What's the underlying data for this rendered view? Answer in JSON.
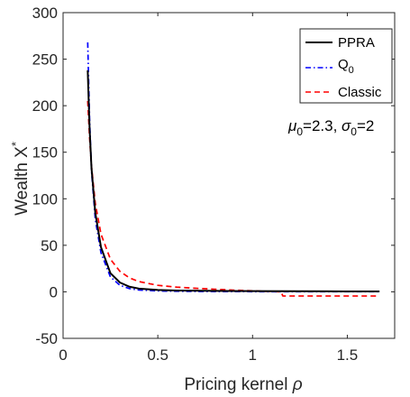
{
  "chart_data": {
    "type": "line",
    "xlabel": {
      "text": "Pricing kernel ",
      "symbol": "ρ"
    },
    "ylabel": {
      "text": "Wealth X",
      "superscript": "*"
    },
    "xlim": [
      0,
      1.75
    ],
    "ylim": [
      -50,
      300
    ],
    "xticks": [
      0,
      0.5,
      1,
      1.5
    ],
    "xtick_labels": [
      "0",
      "0.5",
      "1",
      "1.5"
    ],
    "yticks": [
      -50,
      0,
      50,
      100,
      150,
      200,
      250,
      300
    ],
    "ytick_labels": [
      "-50",
      "0",
      "50",
      "100",
      "150",
      "200",
      "250",
      "300"
    ],
    "grid": false,
    "legend_position": "top-right",
    "annotation": {
      "mu_symbol": "μ",
      "mu_sub": "0",
      "mu_value": "=2.3, ",
      "sigma_symbol": "σ",
      "sigma_sub": "0",
      "sigma_value": "=2"
    },
    "series": [
      {
        "name": "PPRA",
        "legend_label": "PPRA",
        "color": "#000000",
        "dash": "solid",
        "x": [
          0.13,
          0.14,
          0.15,
          0.17,
          0.2,
          0.25,
          0.3,
          0.35,
          0.4,
          0.5,
          0.6,
          0.8,
          1.0,
          1.2,
          1.4,
          1.67
        ],
        "y": [
          238,
          175,
          133,
          85,
          48,
          20,
          10,
          5.5,
          3.5,
          2,
          1.4,
          1,
          0.8,
          0.6,
          0.5,
          0.4
        ]
      },
      {
        "name": "Q0",
        "legend_label": "Q",
        "legend_sub": "0",
        "color": "#0000ff",
        "dash": "dashdot",
        "x": [
          0.13,
          0.14,
          0.15,
          0.17,
          0.2,
          0.25,
          0.3,
          0.35,
          0.4,
          0.5,
          0.6,
          0.8,
          1.0,
          1.2,
          1.4,
          1.67
        ],
        "y": [
          268,
          185,
          130,
          78,
          42,
          16,
          7,
          3.5,
          2,
          1,
          0.6,
          0.3,
          0.2,
          0.15,
          0.1,
          0.1
        ]
      },
      {
        "name": "Classic",
        "legend_label": "Classic",
        "color": "#ff0000",
        "dash": "dashed",
        "x": [
          0.13,
          0.14,
          0.15,
          0.17,
          0.2,
          0.25,
          0.3,
          0.35,
          0.4,
          0.5,
          0.6,
          0.7,
          0.8,
          0.9,
          1.0,
          1.1,
          1.15,
          1.16,
          1.2,
          1.4,
          1.67
        ],
        "y": [
          205,
          165,
          135,
          95,
          62,
          35,
          22,
          15,
          11,
          7,
          5,
          3.8,
          2.8,
          1.8,
          1,
          0.3,
          0,
          -4.5,
          -4.5,
          -4.5,
          -4.5
        ]
      }
    ]
  }
}
